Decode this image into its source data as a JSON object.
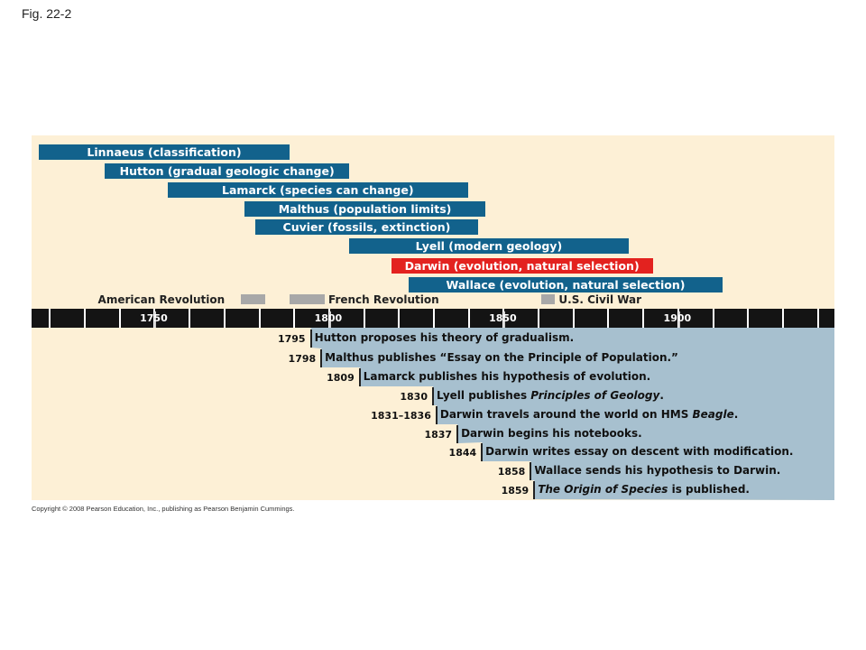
{
  "figure_label": "Fig. 22-2",
  "copyright": "Copyright © 2008 Pearson Education, Inc., publishing as Pearson Benjamin Cummings.",
  "colors": {
    "bar_blue": "#12628c",
    "bar_red": "#e3221f",
    "panel_cream": "#fdf0d6",
    "panel_blue": "#a7c0cf",
    "axis_black": "#141414",
    "event_gray": "#a8a8a8"
  },
  "axis": {
    "min_year": 1715,
    "max_year": 1945,
    "labels": [
      "1750",
      "1800",
      "1850",
      "1900"
    ],
    "label_years": [
      1750,
      1800,
      1850,
      1900
    ],
    "tick_interval_years": 10
  },
  "bars": [
    {
      "label": "Linnaeus (classification)",
      "start": 1717,
      "end": 1789,
      "color": "blue"
    },
    {
      "label": "Hutton (gradual geologic change)",
      "start": 1736,
      "end": 1806,
      "color": "blue"
    },
    {
      "label": "Lamarck (species can change)",
      "start": 1754,
      "end": 1840,
      "color": "blue"
    },
    {
      "label": "Malthus (population limits)",
      "start": 1776,
      "end": 1845,
      "color": "blue"
    },
    {
      "label": "Cuvier (fossils, extinction)",
      "start": 1779,
      "end": 1843,
      "color": "blue"
    },
    {
      "label": "Lyell (modern geology)",
      "start": 1806,
      "end": 1886,
      "color": "blue"
    },
    {
      "label": "Darwin (evolution, natural selection)",
      "start": 1818,
      "end": 1893,
      "color": "red"
    },
    {
      "label": "Wallace (evolution, natural selection)",
      "start": 1823,
      "end": 1913,
      "color": "blue"
    }
  ],
  "events": [
    {
      "label": "American Revolution",
      "start": 1775,
      "end": 1782,
      "label_side": "left"
    },
    {
      "label": "French Revolution",
      "start": 1789,
      "end": 1799,
      "label_side": "right"
    },
    {
      "label": "U.S. Civil War",
      "start": 1861,
      "end": 1865,
      "label_side": "right"
    }
  ],
  "milestones": [
    {
      "year": "1795",
      "value": 1795,
      "text": "Hutton proposes his theory of gradualism."
    },
    {
      "year": "1798",
      "value": 1798,
      "text": "Malthus publishes “Essay on the Principle of Population.”"
    },
    {
      "year": "1809",
      "value": 1809,
      "text": "Lamarck publishes his hypothesis of evolution."
    },
    {
      "year": "1830",
      "value": 1830,
      "text_pre": "Lyell publishes ",
      "text_italic": "Principles of Geology",
      "text_post": "."
    },
    {
      "year": "1831–1836",
      "value": 1831,
      "text_pre": "Darwin travels around the world on HMS ",
      "text_italic": "Beagle",
      "text_post": "."
    },
    {
      "year": "1837",
      "value": 1837,
      "text": "Darwin begins his notebooks."
    },
    {
      "year": "1844",
      "value": 1844,
      "text": "Darwin writes essay on descent with modification."
    },
    {
      "year": "1858",
      "value": 1858,
      "text": "Wallace sends his hypothesis to Darwin."
    },
    {
      "year": "1859",
      "value": 1859,
      "text_pre": "",
      "text_italic": "The Origin of Species",
      "text_post": " is published."
    }
  ]
}
